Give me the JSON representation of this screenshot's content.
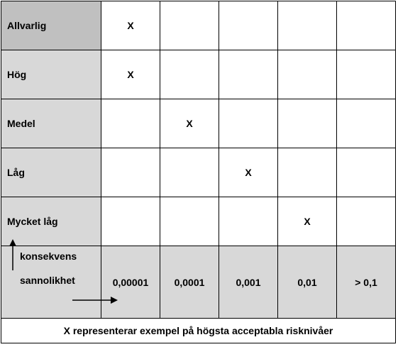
{
  "matrix": {
    "rows": [
      {
        "label": "Allvarlig",
        "cells": [
          "X",
          "",
          "",
          "",
          ""
        ]
      },
      {
        "label": "Hög",
        "cells": [
          "X",
          "",
          "",
          "",
          ""
        ]
      },
      {
        "label": "Medel",
        "cells": [
          "",
          "X",
          "",
          "",
          ""
        ]
      },
      {
        "label": "Låg",
        "cells": [
          "",
          "",
          "X",
          "",
          ""
        ]
      },
      {
        "label": "Mycket låg",
        "cells": [
          "",
          "",
          "",
          "X",
          ""
        ]
      }
    ],
    "axis": {
      "consequence_label": "konsekvens",
      "probability_label": "sannolikhet"
    },
    "probabilities": [
      "0,00001",
      "0,0001",
      "0,001",
      "0,01",
      "> 0,1"
    ],
    "caption": "X representerar exempel på högsta acceptabla risknivåer"
  }
}
